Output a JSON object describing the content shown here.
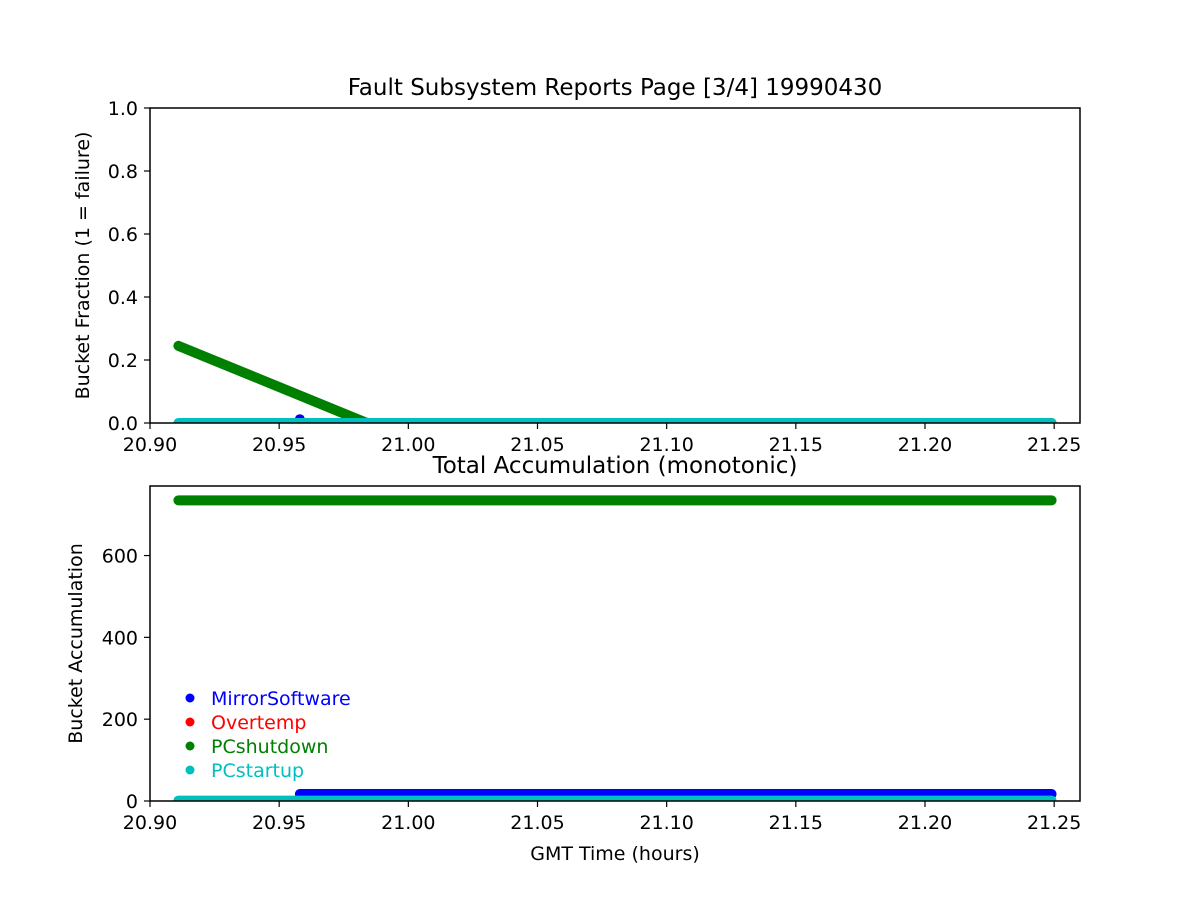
{
  "chart_data": [
    {
      "type": "scatter",
      "title": "Fault Subsystem Reports Page [3/4] 19990430",
      "xlabel": "",
      "ylabel": "Bucket Fraction (1 = failure)",
      "xlim": [
        20.9,
        21.26
      ],
      "ylim": [
        0,
        1.0
      ],
      "xticks": [
        "20.90",
        "20.95",
        "21.00",
        "21.05",
        "21.10",
        "21.15",
        "21.20",
        "21.25"
      ],
      "yticks": [
        "0.0",
        "0.2",
        "0.4",
        "0.6",
        "0.8",
        "1.0"
      ],
      "grid": false,
      "series": [
        {
          "name": "PCshutdown",
          "color": "#008000",
          "segments": [
            {
              "x": [
                20.911,
                20.984
              ],
              "y": [
                0.245,
                0.0
              ]
            },
            {
              "x": [
                20.984,
                21.249
              ],
              "y": [
                0.0,
                0.0
              ]
            }
          ]
        },
        {
          "name": "MirrorSoftware",
          "color": "#0000ff",
          "segments": [
            {
              "x": [
                20.958
              ],
              "y": [
                0.012
              ]
            }
          ]
        },
        {
          "name": "PCstartup",
          "color": "#00bfbf",
          "segments": [
            {
              "x": [
                20.911,
                21.249
              ],
              "y": [
                0.0,
                0.0
              ]
            }
          ]
        }
      ]
    },
    {
      "type": "scatter",
      "title": "Total Accumulation (monotonic)",
      "xlabel": "GMT Time (hours)",
      "ylabel": "Bucket Accumulation",
      "xlim": [
        20.9,
        21.26
      ],
      "ylim": [
        0,
        770
      ],
      "xticks": [
        "20.90",
        "20.95",
        "21.00",
        "21.05",
        "21.10",
        "21.15",
        "21.20",
        "21.25"
      ],
      "yticks": [
        "0",
        "200",
        "400",
        "600"
      ],
      "grid": false,
      "legend_position": "lower-left",
      "legend": [
        {
          "label": "MirrorSoftware",
          "color": "#0000ff"
        },
        {
          "label": "Overtemp",
          "color": "#ff0000"
        },
        {
          "label": "PCshutdown",
          "color": "#008000"
        },
        {
          "label": "PCstartup",
          "color": "#00bfbf"
        }
      ],
      "series": [
        {
          "name": "PCshutdown",
          "color": "#008000",
          "segments": [
            {
              "x": [
                20.911,
                21.249
              ],
              "y": [
                735,
                735
              ]
            }
          ]
        },
        {
          "name": "MirrorSoftware",
          "color": "#0000ff",
          "segments": [
            {
              "x": [
                20.958,
                21.249
              ],
              "y": [
                17,
                17
              ]
            }
          ]
        },
        {
          "name": "PCstartup",
          "color": "#00bfbf",
          "segments": [
            {
              "x": [
                20.911,
                21.249
              ],
              "y": [
                1,
                1
              ]
            }
          ]
        }
      ]
    }
  ]
}
